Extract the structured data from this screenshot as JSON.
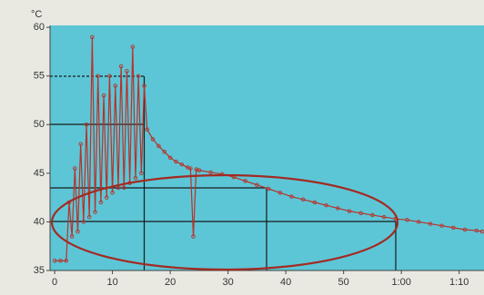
{
  "chart_data": {
    "type": "line",
    "y_unit": "°C",
    "x": [
      0,
      1,
      2,
      2.5,
      3,
      3.5,
      4,
      4.5,
      5,
      5.5,
      6,
      6.5,
      7,
      7.5,
      8,
      8.5,
      9,
      9.5,
      10,
      10.5,
      11,
      11.5,
      12,
      12.5,
      13,
      13.5,
      14,
      14.5,
      15,
      15.5,
      16,
      17,
      18,
      19,
      20,
      21,
      22,
      23,
      23.5,
      24,
      24.5,
      25,
      27,
      29,
      31,
      33,
      35,
      37,
      39,
      41,
      43,
      45,
      47,
      49,
      51,
      53,
      55,
      57,
      59,
      61,
      63,
      65,
      67,
      69,
      71,
      73,
      74
    ],
    "series": [
      {
        "color": "#b8322a",
        "values": [
          36,
          36,
          36,
          42,
          38.5,
          45.5,
          39,
          48,
          40,
          50,
          40.5,
          59,
          41,
          55,
          42,
          53,
          42.5,
          55,
          43,
          54,
          43.5,
          56,
          43.5,
          55.5,
          44,
          58,
          44.5,
          55,
          45,
          54,
          49.5,
          48.5,
          47.8,
          47.2,
          46.6,
          46.2,
          45.9,
          45.6,
          45.5,
          38.5,
          45.4,
          45.3,
          45.1,
          44.9,
          44.6,
          44.2,
          43.8,
          43.4,
          43,
          42.6,
          42.3,
          42,
          41.7,
          41.4,
          41.1,
          40.9,
          40.7,
          40.5,
          40.3,
          40.2,
          40,
          39.8,
          39.6,
          39.4,
          39.2,
          39.1,
          39
        ]
      }
    ],
    "xlim": [
      -0.8,
      74.3
    ],
    "xticks": [
      0,
      10,
      20,
      30,
      40,
      50,
      {
        "value": 60,
        "label": "1:00"
      },
      {
        "value": 70,
        "label": "1:10"
      }
    ],
    "ylim": [
      35,
      60.2
    ],
    "yticks": [
      35,
      40,
      45,
      50,
      55,
      60
    ]
  }
}
